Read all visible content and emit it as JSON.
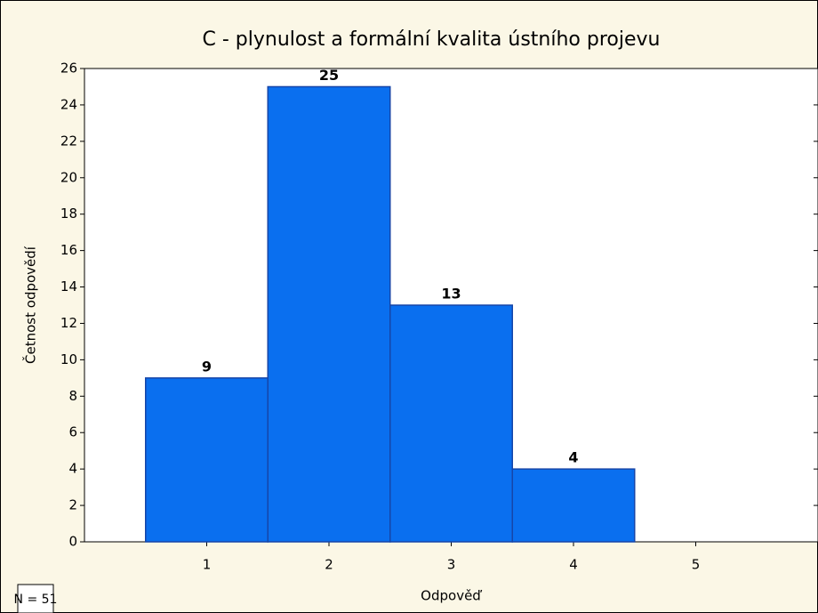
{
  "chart_data": {
    "type": "bar",
    "title": "C - plynulost a formální kvalita ústního projevu",
    "xlabel": "Odpověď",
    "ylabel": "Četnost odpovědí",
    "annotation": "N = 51",
    "x": [
      1,
      2,
      3,
      4,
      5
    ],
    "values": [
      9,
      25,
      13,
      4,
      0
    ],
    "value_labels": [
      "9",
      "25",
      "13",
      "4",
      null
    ],
    "color": "#0a6fef",
    "xlim": [
      0,
      6
    ],
    "xticks": [
      1,
      2,
      3,
      4,
      5
    ],
    "ylim": [
      0,
      26
    ],
    "yticks": [
      0,
      2,
      4,
      6,
      8,
      10,
      12,
      14,
      16,
      18,
      20,
      22,
      24,
      26
    ]
  }
}
